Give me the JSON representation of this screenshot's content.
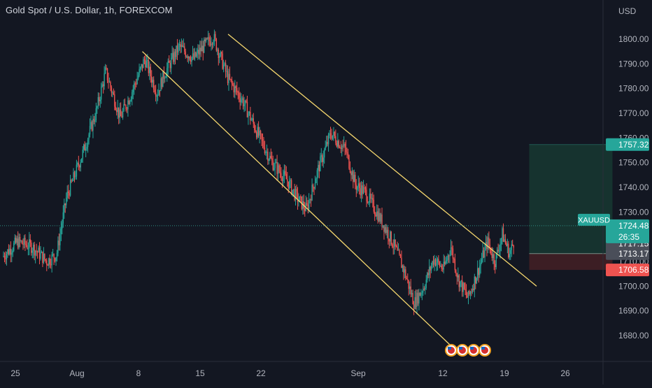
{
  "header": {
    "title": "Gold Spot / U.S. Dollar, 1h, FOREXCOM"
  },
  "colors": {
    "background": "#131722",
    "up": "#26a69a",
    "down": "#ef5350",
    "trendline": "#f5d76e",
    "axis_text": "#b2b5be",
    "profit_zone": "#16332f",
    "loss_zone": "#3c1e24"
  },
  "chart_data": {
    "type": "candlestick",
    "currency_label": "USD",
    "symbol": "XAUUSD",
    "y_ticks": [
      "1680.00",
      "1690.00",
      "1700.00",
      "1710.00",
      "1720.00",
      "1730.00",
      "1740.00",
      "1750.00",
      "1760.00",
      "1770.00",
      "1780.00",
      "1790.00",
      "1800.00"
    ],
    "x_ticks": [
      "25",
      "Aug",
      "8",
      "15",
      "22",
      "Sep",
      "12",
      "19",
      "26"
    ],
    "ylim": [
      1673,
      1812
    ],
    "price_path": [
      {
        "x": 0,
        "y": 1712
      },
      {
        "x": 3,
        "y": 1718
      },
      {
        "x": 6,
        "y": 1716
      },
      {
        "x": 9,
        "y": 1710
      },
      {
        "x": 11,
        "y": 1713
      },
      {
        "x": 13,
        "y": 1736
      },
      {
        "x": 16,
        "y": 1752
      },
      {
        "x": 19,
        "y": 1770
      },
      {
        "x": 21,
        "y": 1787
      },
      {
        "x": 24,
        "y": 1768
      },
      {
        "x": 26,
        "y": 1777
      },
      {
        "x": 29,
        "y": 1792
      },
      {
        "x": 31.5,
        "y": 1778
      },
      {
        "x": 33,
        "y": 1786
      },
      {
        "x": 36,
        "y": 1797
      },
      {
        "x": 39,
        "y": 1792
      },
      {
        "x": 41,
        "y": 1797
      },
      {
        "x": 43,
        "y": 1801
      },
      {
        "x": 46,
        "y": 1784
      },
      {
        "x": 49,
        "y": 1775
      },
      {
        "x": 52,
        "y": 1762
      },
      {
        "x": 55,
        "y": 1750
      },
      {
        "x": 58,
        "y": 1743
      },
      {
        "x": 60,
        "y": 1736
      },
      {
        "x": 62,
        "y": 1731
      },
      {
        "x": 64.5,
        "y": 1748
      },
      {
        "x": 67,
        "y": 1762
      },
      {
        "x": 70,
        "y": 1755
      },
      {
        "x": 72,
        "y": 1741
      },
      {
        "x": 74,
        "y": 1738
      },
      {
        "x": 76,
        "y": 1731
      },
      {
        "x": 78,
        "y": 1724
      },
      {
        "x": 80,
        "y": 1716
      },
      {
        "x": 82,
        "y": 1706
      },
      {
        "x": 84,
        "y": 1693
      },
      {
        "x": 86,
        "y": 1700
      },
      {
        "x": 88,
        "y": 1711
      },
      {
        "x": 90,
        "y": 1707
      },
      {
        "x": 91.5,
        "y": 1716
      },
      {
        "x": 93,
        "y": 1703
      },
      {
        "x": 95,
        "y": 1695
      },
      {
        "x": 97,
        "y": 1706
      },
      {
        "x": 99,
        "y": 1718
      },
      {
        "x": 100.5,
        "y": 1710
      },
      {
        "x": 102,
        "y": 1721
      },
      {
        "x": 103.5,
        "y": 1713
      },
      {
        "x": 104.5,
        "y": 1719
      }
    ],
    "trendlines": [
      {
        "name": "channel-upper",
        "x1": 46,
        "y1": 1802,
        "x2": 109,
        "y2": 1700
      },
      {
        "name": "channel-lower",
        "x1": 28.5,
        "y1": 1795,
        "x2": 92.5,
        "y2": 1674
      }
    ],
    "position": {
      "type": "long",
      "target": "1757.32",
      "entry": "1713.17",
      "stop": "1706.58",
      "x_start": 107.5,
      "x_end": 124.5,
      "target_value": 1757.32,
      "entry_value": 1713.17,
      "stop_value": 1706.58
    },
    "current_price": {
      "label": "XAUUSD",
      "value": "1724.48",
      "countdown": "26:35",
      "price_value": 1724.48
    },
    "price_labels": [
      {
        "value": "1757.32",
        "color": "#26a69a",
        "price_value": 1757.32
      },
      {
        "value": "1717.15",
        "color": "#4a4e59",
        "price_value": 1717.15
      },
      {
        "value": "1713.17",
        "color": "#4a4e59",
        "price_value": 1713.17
      },
      {
        "value": "1706.58",
        "color": "#ef5350",
        "price_value": 1706.58
      }
    ],
    "grid": false
  }
}
